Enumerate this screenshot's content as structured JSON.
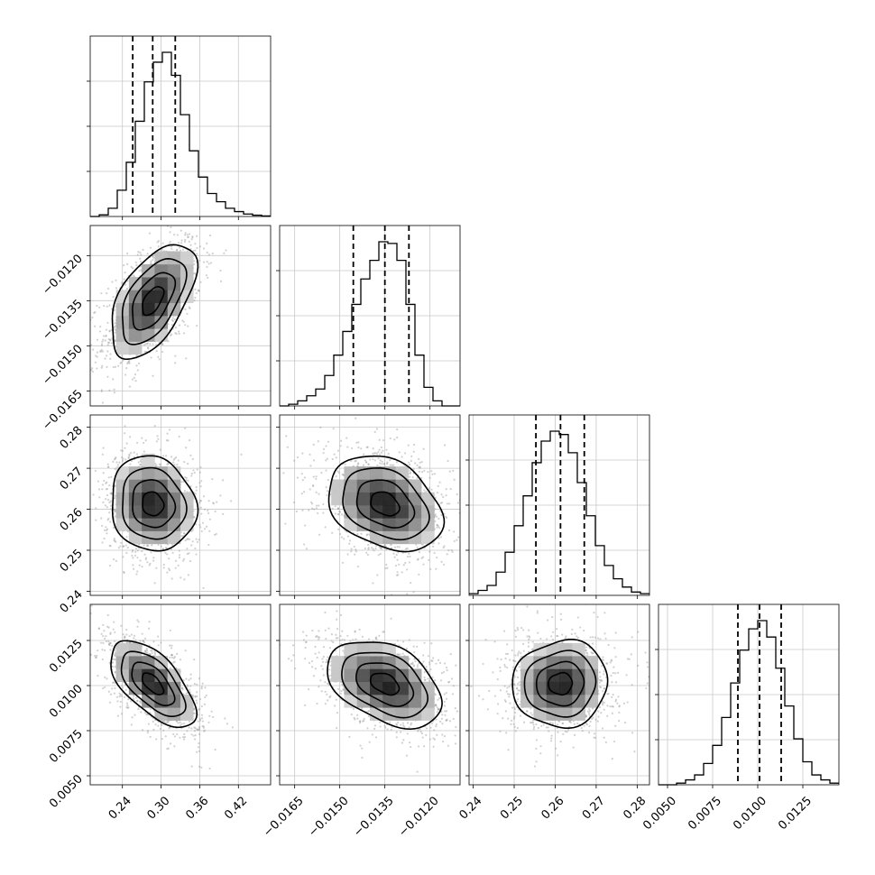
{
  "chart_data": {
    "type": "corner",
    "parameters": [
      {
        "index": 0,
        "range": [
          0.19,
          0.47
        ],
        "ticks": [
          0.24,
          0.3,
          0.36,
          0.42
        ],
        "tick_labels": [
          "0.24",
          "0.30",
          "0.36",
          "0.42"
        ],
        "median": 0.287,
        "quantiles": [
          0.256,
          0.287,
          0.322
        ],
        "std": 0.033,
        "histogram": [
          0.0,
          0.01,
          0.05,
          0.16,
          0.33,
          0.58,
          0.82,
          0.94,
          1.0,
          0.86,
          0.62,
          0.4,
          0.24,
          0.14,
          0.09,
          0.05,
          0.03,
          0.015,
          0.008,
          0.003
        ]
      },
      {
        "index": 1,
        "range": [
          -0.017,
          -0.011
        ],
        "ticks": [
          -0.0165,
          -0.015,
          -0.0135,
          -0.012
        ],
        "tick_labels": [
          "−0.0165",
          "−0.0150",
          "−0.0135",
          "−0.0120"
        ],
        "median": -0.0135,
        "quantiles": [
          -0.01455,
          -0.0135,
          -0.0127
        ],
        "std": 0.00095,
        "histogram": [
          0.0,
          0.01,
          0.03,
          0.06,
          0.1,
          0.18,
          0.3,
          0.44,
          0.6,
          0.75,
          0.86,
          0.97,
          0.96,
          0.86,
          0.6,
          0.3,
          0.11,
          0.03,
          0.0,
          0.0
        ]
      },
      {
        "index": 2,
        "range": [
          0.239,
          0.283
        ],
        "ticks": [
          0.24,
          0.25,
          0.26,
          0.27,
          0.28
        ],
        "tick_labels": [
          "0.24",
          "0.25",
          "0.26",
          "0.27",
          "0.28"
        ],
        "median": 0.2613,
        "quantiles": [
          0.2553,
          0.2613,
          0.2671
        ],
        "std": 0.0058,
        "histogram": [
          0.01,
          0.03,
          0.06,
          0.14,
          0.26,
          0.42,
          0.6,
          0.8,
          0.93,
          0.99,
          0.97,
          0.86,
          0.68,
          0.48,
          0.3,
          0.18,
          0.1,
          0.05,
          0.02,
          0.01
        ]
      },
      {
        "index": 3,
        "range": [
          0.0045,
          0.0145
        ],
        "ticks": [
          0.005,
          0.0075,
          0.01,
          0.0125
        ],
        "tick_labels": [
          "0.0050",
          "0.0075",
          "0.0100",
          "0.0125"
        ],
        "median": 0.0101,
        "quantiles": [
          0.0089,
          0.0101,
          0.0113
        ],
        "std": 0.0012,
        "histogram": [
          0.0,
          0.0,
          0.01,
          0.03,
          0.06,
          0.13,
          0.24,
          0.41,
          0.62,
          0.82,
          0.95,
          1.0,
          0.9,
          0.71,
          0.48,
          0.28,
          0.14,
          0.06,
          0.03,
          0.01
        ]
      }
    ],
    "correlations": [
      {
        "i": 1,
        "j": 0,
        "r": 0.55
      },
      {
        "i": 2,
        "j": 0,
        "r": -0.1
      },
      {
        "i": 2,
        "j": 1,
        "r": -0.3
      },
      {
        "i": 3,
        "j": 0,
        "r": -0.62
      },
      {
        "i": 3,
        "j": 1,
        "r": -0.4
      },
      {
        "i": 3,
        "j": 2,
        "r": 0.05
      }
    ],
    "contour_levels_sigma": [
      0.5,
      1.0,
      1.5,
      2.0
    ],
    "grid": true,
    "scatter_points_per_panel": 1200
  }
}
